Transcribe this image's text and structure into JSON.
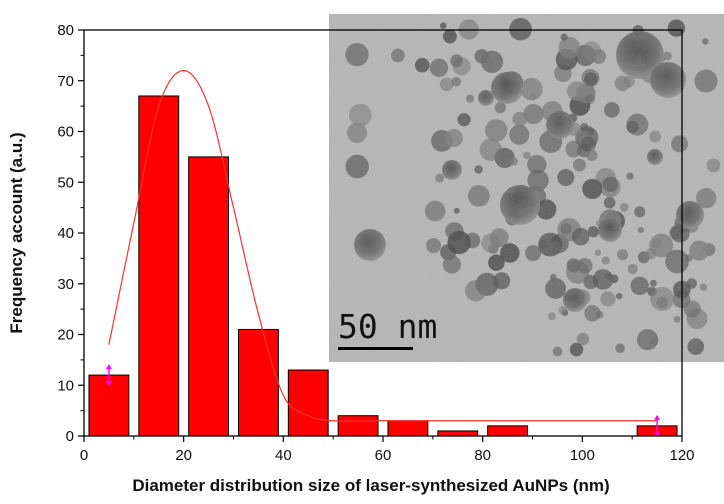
{
  "chart_data": {
    "type": "bar",
    "title": "",
    "xlabel": "Diameter distribution size of  laser-synthesized AuNPs (nm)",
    "ylabel": "Frequency account (a.u.)",
    "x_ticks": [
      0,
      20,
      40,
      60,
      80,
      100,
      120
    ],
    "y_ticks": [
      0,
      10,
      20,
      30,
      40,
      50,
      60,
      70,
      80
    ],
    "xlim": [
      0,
      120
    ],
    "ylim": [
      0,
      80
    ],
    "grid": false,
    "legend": "none",
    "bar_width": 8,
    "bars": [
      {
        "x": 5,
        "value": 12
      },
      {
        "x": 15,
        "value": 67
      },
      {
        "x": 25,
        "value": 55
      },
      {
        "x": 35,
        "value": 21
      },
      {
        "x": 45,
        "value": 13
      },
      {
        "x": 55,
        "value": 4
      },
      {
        "x": 65,
        "value": 3
      },
      {
        "x": 75,
        "value": 1
      },
      {
        "x": 85,
        "value": 2
      },
      {
        "x": 115,
        "value": 2
      }
    ],
    "fit_curve": {
      "x": [
        5,
        10,
        15,
        20,
        25,
        30,
        35,
        40,
        45,
        50,
        60,
        80,
        100,
        115
      ],
      "y": [
        18,
        42,
        65,
        72,
        65,
        45,
        24,
        8,
        4,
        3,
        3,
        3,
        3,
        3
      ]
    },
    "error_markers": [
      {
        "x": 5,
        "value": 12
      },
      {
        "x": 115,
        "value": 2
      }
    ],
    "colors": {
      "bar": "#ff0000",
      "bar_stroke": "#000000",
      "fit": "#ff3030",
      "marker": "#ff00ff",
      "axis": "#000000"
    }
  },
  "inset": {
    "scale_bar_label": "50 nm"
  }
}
